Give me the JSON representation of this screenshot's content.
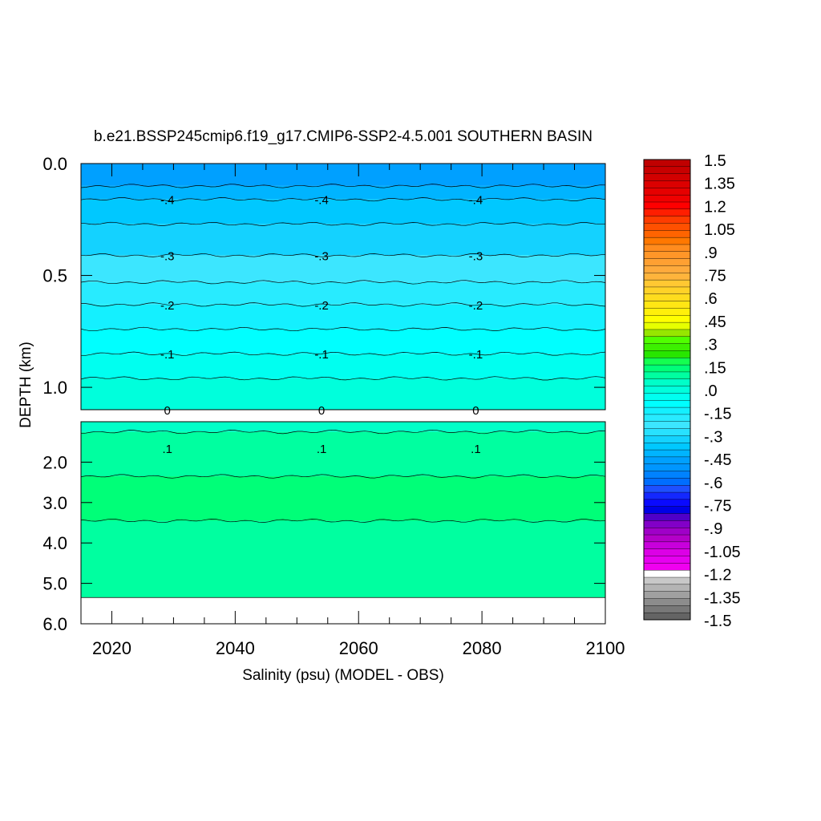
{
  "chart_data": {
    "type": "heatmap",
    "title": "b.e21.BSSP245cmip6.f19_g17.CMIP6-SSP2-4.5.001 SOUTHERN BASIN",
    "xlabel": "Salinity (psu) (MODEL - OBS)",
    "ylabel": "DEPTH (km)",
    "xlim": [
      2015,
      2100
    ],
    "x_ticks": [
      "2020",
      "2040",
      "2060",
      "2080",
      "2100"
    ],
    "upper_panel": {
      "ylim": [
        0.0,
        1.1
      ],
      "y_ticks": [
        "0.0",
        "0.5",
        "1.0"
      ],
      "bands": [
        {
          "from": 0.0,
          "to": 0.1,
          "value": -0.45
        },
        {
          "from": 0.1,
          "to": 0.16,
          "value": -0.4
        },
        {
          "from": 0.16,
          "to": 0.27,
          "value": -0.35
        },
        {
          "from": 0.27,
          "to": 0.41,
          "value": -0.3
        },
        {
          "from": 0.41,
          "to": 0.53,
          "value": -0.25
        },
        {
          "from": 0.53,
          "to": 0.63,
          "value": -0.2
        },
        {
          "from": 0.63,
          "to": 0.74,
          "value": -0.15
        },
        {
          "from": 0.74,
          "to": 0.85,
          "value": -0.1
        },
        {
          "from": 0.85,
          "to": 0.96,
          "value": -0.05
        },
        {
          "from": 0.96,
          "to": 1.1,
          "value": 0.0
        }
      ],
      "contour_labels": [
        {
          "text": "-.4",
          "depth": 0.16
        },
        {
          "text": "-.3",
          "depth": 0.41
        },
        {
          "text": "-.2",
          "depth": 0.63
        },
        {
          "text": "-.1",
          "depth": 0.85
        },
        {
          "text": "0",
          "depth": 1.1
        }
      ],
      "label_years": [
        2029,
        2054,
        2079
      ]
    },
    "lower_panel": {
      "ylim": [
        1.0,
        6.0
      ],
      "y_ticks": [
        "2.0",
        "3.0",
        "4.0",
        "5.0",
        "6.0"
      ],
      "bands": [
        {
          "from": 1.0,
          "to": 1.25,
          "value": 0.05
        },
        {
          "from": 1.25,
          "to": 2.35,
          "value": 0.1
        },
        {
          "from": 2.35,
          "to": 3.45,
          "value": 0.15
        },
        {
          "from": 3.45,
          "to": 5.35,
          "value": 0.1
        }
      ],
      "no_data_below": 5.35,
      "contour_labels": [
        {
          "text": ".1",
          "depth": 1.65
        }
      ],
      "label_years": [
        2029,
        2054,
        2079
      ]
    },
    "colorbar": {
      "min": -1.5,
      "max": 1.5,
      "step": 0.05,
      "labels": [
        "1.5",
        "1.35",
        "1.2",
        "1.05",
        ".9",
        ".75",
        ".6",
        ".45",
        ".3",
        ".15",
        ".0",
        "-.15",
        "-.3",
        "-.45",
        "-.6",
        "-.75",
        "-.9",
        "-1.05",
        "-1.2",
        "-1.35",
        "-1.5"
      ],
      "colors_top_to_bottom": [
        "#c00000",
        "#c80000",
        "#d20000",
        "#dc0000",
        "#e60000",
        "#f00000",
        "#ff0000",
        "#ff1e00",
        "#ff3c00",
        "#ff5000",
        "#ff6400",
        "#ff7800",
        "#ff8c1e",
        "#ff9628",
        "#ffa032",
        "#ffaa3c",
        "#ffb43c",
        "#ffc832",
        "#ffd228",
        "#ffdc1e",
        "#ffe614",
        "#fff00a",
        "#ffff00",
        "#e6ff00",
        "#96e600",
        "#50ff00",
        "#3cf000",
        "#28e600",
        "#14ff50",
        "#00ff78",
        "#00ffa0",
        "#00ffc8",
        "#00ffdc",
        "#00fff0",
        "#00ffff",
        "#14f0ff",
        "#28ebff",
        "#3ce6ff",
        "#28e1ff",
        "#14d2ff",
        "#00c8ff",
        "#00b4ff",
        "#00a0ff",
        "#0096ff",
        "#0082ff",
        "#006eff",
        "#1e50ff",
        "#1428ff",
        "#0a0aff",
        "#0000e6",
        "#5000c8",
        "#8200c8",
        "#a000c8",
        "#b400c8",
        "#c800dc",
        "#dc00e6",
        "#e600f0",
        "#f000f0",
        "#ffffff",
        "#c8c8c8",
        "#b4b4b4",
        "#a0a0a0",
        "#8c8c8c",
        "#787878",
        "#646464"
      ]
    },
    "colors": {
      "no_data": "#ffffff",
      "contour_line": "#000000"
    }
  }
}
